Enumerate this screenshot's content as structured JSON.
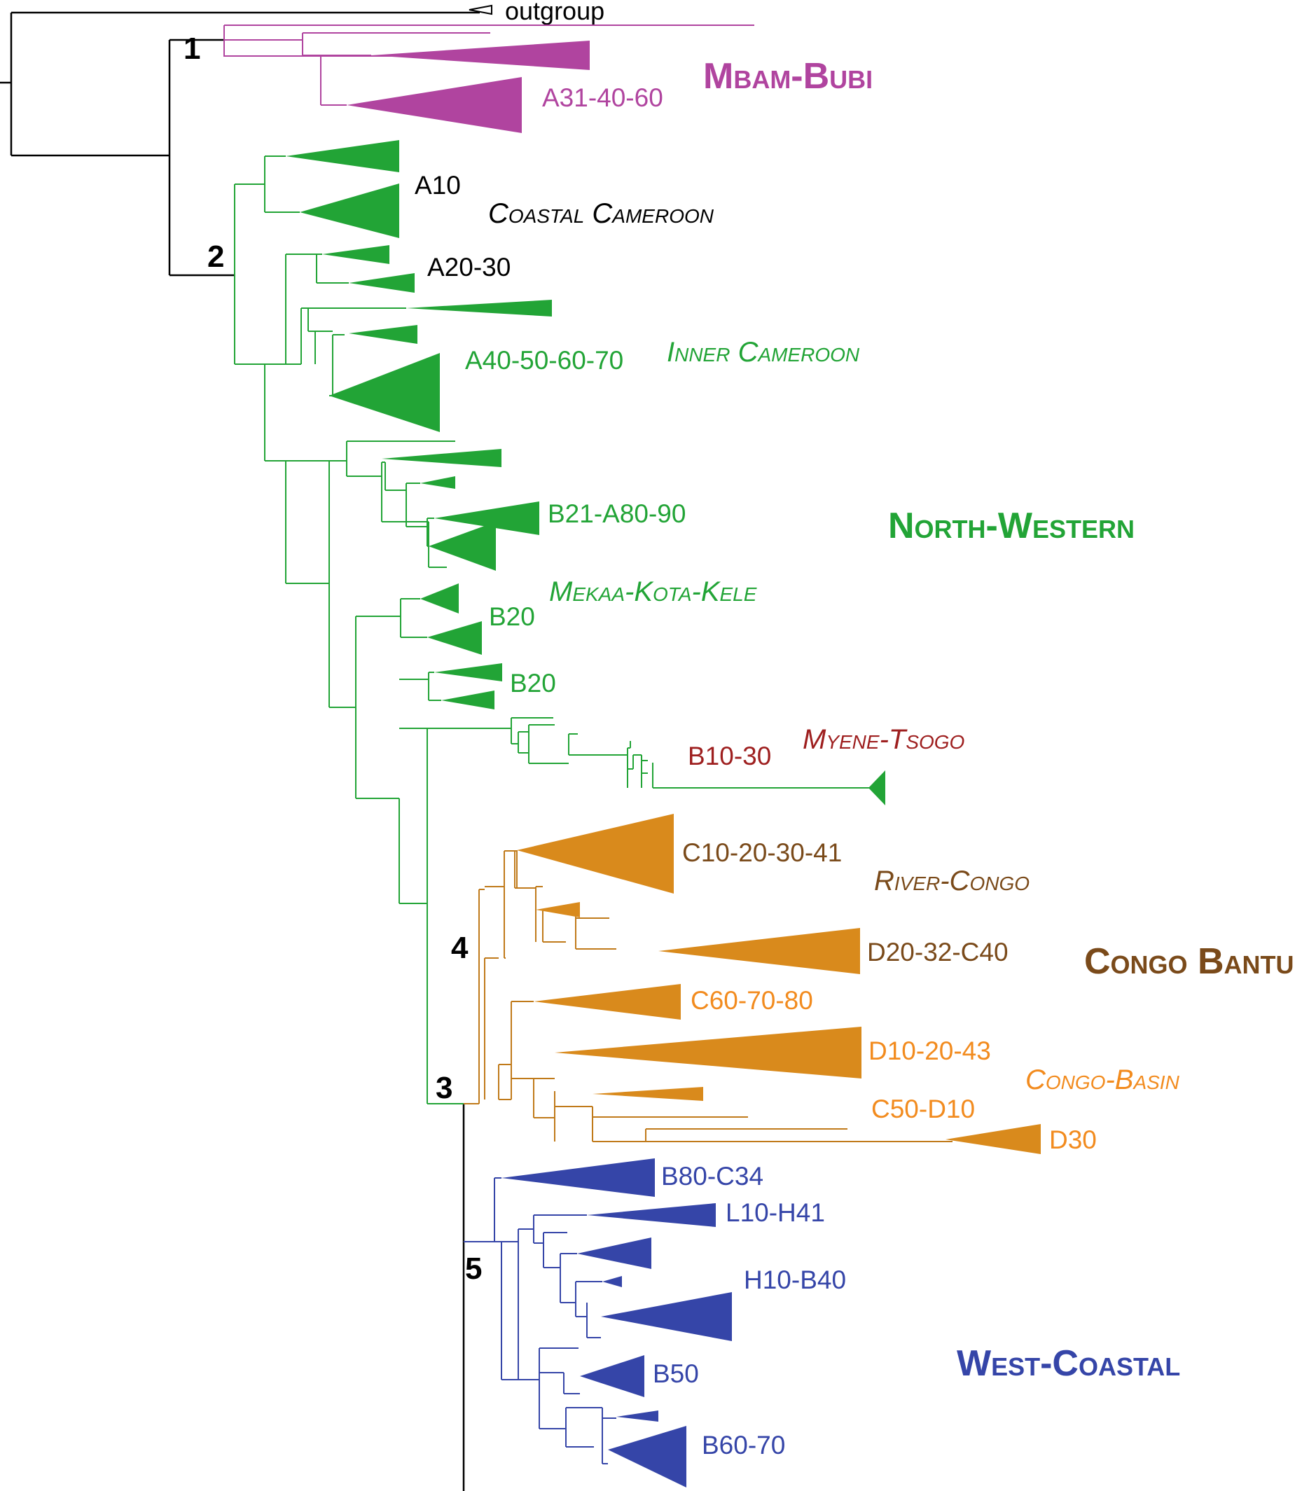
{
  "colors": {
    "black": "#000000",
    "mbam_bubi": "#b0449f",
    "north_western": "#22a436",
    "myene_tsogo": "#9e1f1f",
    "congo_bantu_dark": "#7a4a1a",
    "congo_orange": "#d98a1c",
    "congo_light": "#f28b1e",
    "west_coastal": "#3545a8"
  },
  "outgroup": "outgroup",
  "node_numbers": [
    "1",
    "2",
    "3",
    "4",
    "5"
  ],
  "major_groups": {
    "mbam_bubi": "Mbam-Bubi",
    "north_western": "North-Western",
    "congo_bantu": "Congo Bantu",
    "west_coastal": "West-Coastal"
  },
  "subgroups": {
    "coastal_cameroon": "Coastal Cameroon",
    "inner_cameroon": "Inner Cameroon",
    "mekaa_kota_kele": "Mekaa-Kota-Kele",
    "myene_tsogo": "Myene-Tsogo",
    "river_congo": "River-Congo",
    "congo_basin": "Congo-Basin"
  },
  "clades": {
    "a31_40_60": "A31-40-60",
    "a10": "A10",
    "a20_30": "A20-30",
    "a40_50_60_70": "A40-50-60-70",
    "b21_a80_90": "B21-A80-90",
    "b20_first": "B20",
    "b20_second": "B20",
    "b10_30": "B10-30",
    "c10_20_30_41": "C10-20-30-41",
    "d20_32_c40": "D20-32-C40",
    "c60_70_80": "C60-70-80",
    "d10_20_43": "D10-20-43",
    "c50_d10": "C50-D10",
    "d30": "D30",
    "b80_c34": "B80-C34",
    "l10_h41": "L10-H41",
    "h10_b40": "H10-B40",
    "b50": "B50",
    "b60_70": "B60-70"
  }
}
